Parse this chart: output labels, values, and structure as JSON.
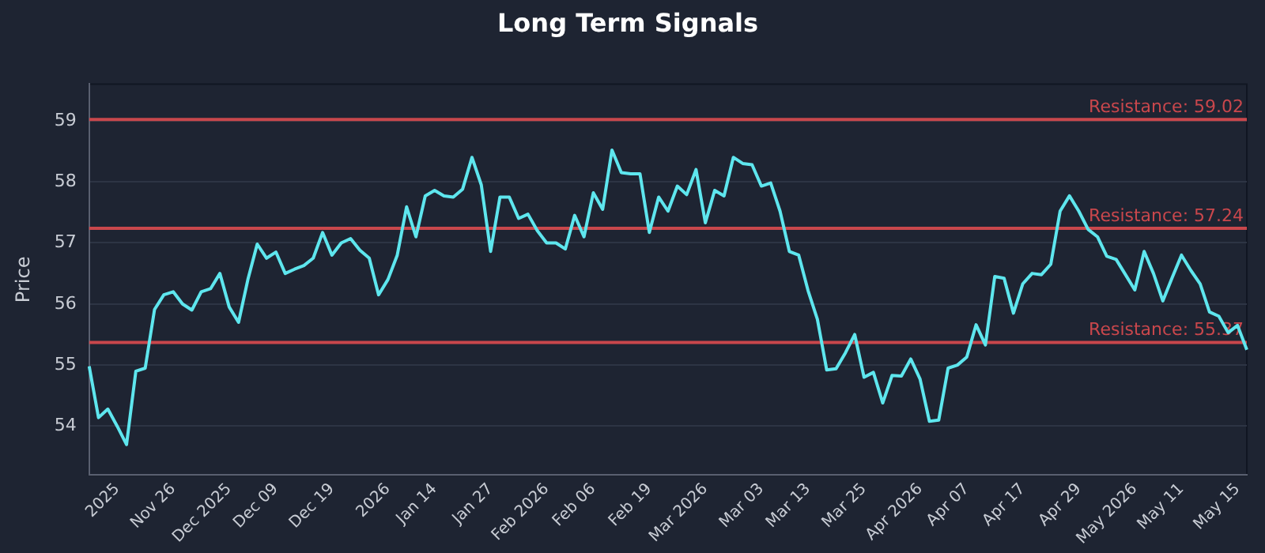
{
  "chart_data": {
    "type": "line",
    "title": "Long Term Signals",
    "ylabel": "Price",
    "categories": [
      null,
      null,
      null,
      "2025",
      null,
      null,
      null,
      null,
      null,
      "Nov 26",
      null,
      null,
      null,
      null,
      null,
      "Dec 2025",
      null,
      null,
      null,
      null,
      "Dec 09",
      null,
      null,
      null,
      null,
      null,
      "Dec 19",
      null,
      null,
      null,
      null,
      null,
      "2026",
      null,
      null,
      null,
      null,
      "Jan 14",
      null,
      null,
      null,
      null,
      null,
      "Jan 27",
      null,
      null,
      null,
      null,
      null,
      "Feb 2026",
      null,
      null,
      null,
      null,
      "Feb 06",
      null,
      null,
      null,
      null,
      null,
      "Feb 19",
      null,
      null,
      null,
      null,
      null,
      "Mar 2026",
      null,
      null,
      null,
      null,
      null,
      "Mar 03",
      null,
      null,
      null,
      null,
      "Mar 13",
      null,
      null,
      null,
      null,
      null,
      "Mar 25",
      null,
      null,
      null,
      null,
      null,
      "Apr 2026",
      null,
      null,
      null,
      null,
      "Apr 07",
      null,
      null,
      null,
      null,
      null,
      "Apr 17",
      null,
      null,
      null,
      null,
      null,
      "Apr 29",
      null,
      null,
      null,
      null,
      null,
      "May 2026",
      null,
      null,
      null,
      null,
      "May 11",
      null,
      null,
      null,
      null,
      null,
      "May 15",
      null
    ],
    "series": [
      {
        "color": "#5ee6ee",
        "values": [
          54.98,
          54.14,
          54.28,
          54.0,
          53.7,
          54.9,
          54.95,
          55.91,
          56.15,
          56.2,
          56.0,
          55.9,
          56.2,
          56.25,
          56.5,
          55.95,
          55.7,
          56.4,
          56.98,
          56.75,
          56.85,
          56.5,
          56.57,
          56.63,
          56.75,
          57.17,
          56.8,
          57.0,
          57.07,
          56.88,
          56.75,
          56.15,
          56.4,
          56.8,
          57.59,
          57.1,
          57.77,
          57.86,
          57.77,
          57.75,
          57.88,
          58.4,
          57.95,
          56.86,
          57.75,
          57.75,
          57.4,
          57.47,
          57.2,
          57.0,
          57.0,
          56.9,
          57.45,
          57.1,
          57.82,
          57.55,
          58.52,
          58.15,
          58.13,
          58.13,
          57.17,
          57.75,
          57.52,
          57.93,
          57.79,
          58.2,
          57.33,
          57.86,
          57.77,
          58.4,
          58.3,
          58.28,
          57.93,
          57.98,
          57.52,
          56.86,
          56.8,
          56.22,
          55.75,
          54.92,
          54.94,
          55.2,
          55.5,
          54.8,
          54.88,
          54.38,
          54.83,
          54.82,
          55.1,
          54.77,
          54.08,
          54.1,
          54.95,
          55.0,
          55.13,
          55.66,
          55.33,
          56.45,
          56.42,
          55.85,
          56.33,
          56.5,
          56.48,
          56.65,
          57.52,
          57.77,
          57.52,
          57.22,
          57.1,
          56.78,
          56.73,
          56.48,
          56.23,
          56.86,
          56.5,
          56.05,
          56.43,
          56.8,
          56.55,
          56.33,
          55.87,
          55.8,
          55.53,
          55.65,
          55.25
        ]
      }
    ],
    "ylim": [
      53.2,
      59.6
    ],
    "yticks": [
      54,
      55,
      56,
      57,
      58,
      59
    ],
    "grid": "y",
    "marker": "none",
    "line_style": "solid",
    "ref_lines": [
      {
        "axis": "y",
        "value": 59.02,
        "label": "Resistance: 59.02",
        "color": "#c9474c"
      },
      {
        "axis": "y",
        "value": 57.24,
        "label": "Resistance: 57.24",
        "color": "#c9474c"
      },
      {
        "axis": "y",
        "value": 55.37,
        "label": "Resistance: 55.37",
        "color": "#c9474c"
      }
    ]
  }
}
